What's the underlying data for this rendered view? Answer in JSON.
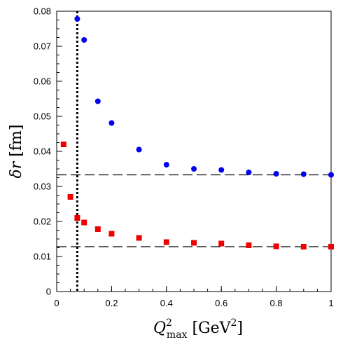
{
  "chart_data": {
    "type": "scatter",
    "xlabel": {
      "main": "Q",
      "sup": "2",
      "sub": "max",
      "unit_open": " [GeV",
      "unit_sup": "2",
      "unit_close": "]"
    },
    "ylabel": {
      "symbol": "δr",
      "unit": " [fm]"
    },
    "xlim": [
      0,
      1
    ],
    "ylim": [
      0,
      0.08
    ],
    "x_ticks": [
      0,
      0.2,
      0.4,
      0.6,
      0.8,
      1
    ],
    "x_tick_labels": [
      "0",
      "0.2",
      "0.4",
      "0.6",
      "0.8",
      "1"
    ],
    "y_ticks": [
      0,
      0.01,
      0.02,
      0.03,
      0.04,
      0.05,
      0.06,
      0.07,
      0.08
    ],
    "y_tick_labels": [
      "0",
      "0.01",
      "0.02",
      "0.03",
      "0.04",
      "0.05",
      "0.06",
      "0.07",
      "0.08"
    ],
    "grid": false,
    "series": [
      {
        "marker": "circle",
        "color": "#0000ee",
        "points": [
          [
            0.075,
            0.0778
          ],
          [
            0.1,
            0.0718
          ],
          [
            0.15,
            0.0543
          ],
          [
            0.2,
            0.0481
          ],
          [
            0.3,
            0.0405
          ],
          [
            0.4,
            0.0362
          ],
          [
            0.5,
            0.035
          ],
          [
            0.6,
            0.0347
          ],
          [
            0.7,
            0.034
          ],
          [
            0.8,
            0.0336
          ],
          [
            0.9,
            0.0335
          ],
          [
            1.0,
            0.0333
          ]
        ]
      },
      {
        "marker": "square",
        "color": "#ee0000",
        "points": [
          [
            0.025,
            0.042
          ],
          [
            0.05,
            0.027
          ],
          [
            0.075,
            0.021
          ],
          [
            0.1,
            0.0197
          ],
          [
            0.15,
            0.0178
          ],
          [
            0.2,
            0.0165
          ],
          [
            0.3,
            0.0153
          ],
          [
            0.4,
            0.0141
          ],
          [
            0.5,
            0.0139
          ],
          [
            0.6,
            0.0137
          ],
          [
            0.7,
            0.0132
          ],
          [
            0.8,
            0.0129
          ],
          [
            0.9,
            0.0128
          ],
          [
            1.0,
            0.0128
          ]
        ]
      }
    ],
    "reference_lines": [
      {
        "orientation": "horizontal",
        "value": 0.0333,
        "style": "dashed"
      },
      {
        "orientation": "horizontal",
        "value": 0.0128,
        "style": "dashed"
      },
      {
        "orientation": "vertical",
        "value": 0.075,
        "style": "dotted"
      }
    ]
  }
}
